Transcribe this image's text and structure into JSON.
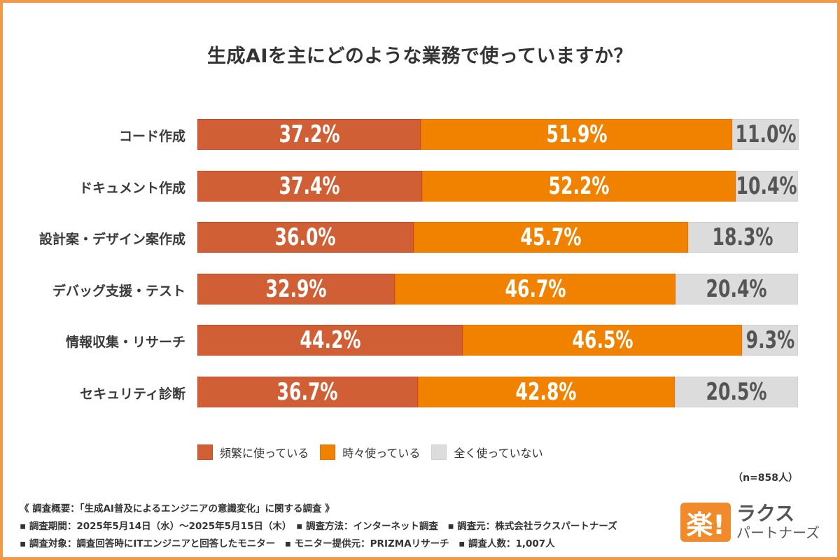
{
  "chart_data": {
    "type": "bar",
    "orientation": "horizontal",
    "stacked": true,
    "percent": true,
    "title": "生成AIを主にどのような業務で使っていますか？",
    "categories": [
      "コード作成",
      "ドキュメント作成",
      "設計案・デザイン案作成",
      "デバッグ支援・テスト",
      "情報収集・リサーチ",
      "セキュリティ診断"
    ],
    "series": [
      {
        "name": "頻繁に使っている",
        "color": "#d05f35",
        "values": [
          37.2,
          37.4,
          36.0,
          32.9,
          44.2,
          36.7
        ]
      },
      {
        "name": "時々使っている",
        "color": "#f08200",
        "values": [
          51.9,
          52.2,
          45.7,
          46.7,
          46.5,
          42.8
        ]
      },
      {
        "name": "全く使っていない",
        "color": "#dcdcdc",
        "values": [
          11.0,
          10.4,
          18.3,
          20.4,
          9.3,
          20.5
        ]
      }
    ],
    "xlim": [
      0,
      100
    ],
    "legend": "bottom",
    "grid": false,
    "value_labels": true
  },
  "sample_size": "（n=858人）",
  "notes": [
    "《 調査概要：「生成AI普及によるエンジニアの意識変化」に関する調査 》",
    "▪ 調査期間：2025年5月14日（水）～2025年5月15日（木）　▪ 調査方法：インターネット調査　▪ 調査元：株式会社ラクスパートナーズ",
    "▪ 調査対象：調査回答時にITエンジニアと回答したモニター　▪ モニター提供元：PRIZMAリサーチ　▪ 調査人数：1,007人"
  ],
  "logo": {
    "mark": "楽!",
    "line1": "ラクス",
    "line2": "パートナーズ"
  },
  "colors": {
    "frame": "#f39a4a"
  }
}
